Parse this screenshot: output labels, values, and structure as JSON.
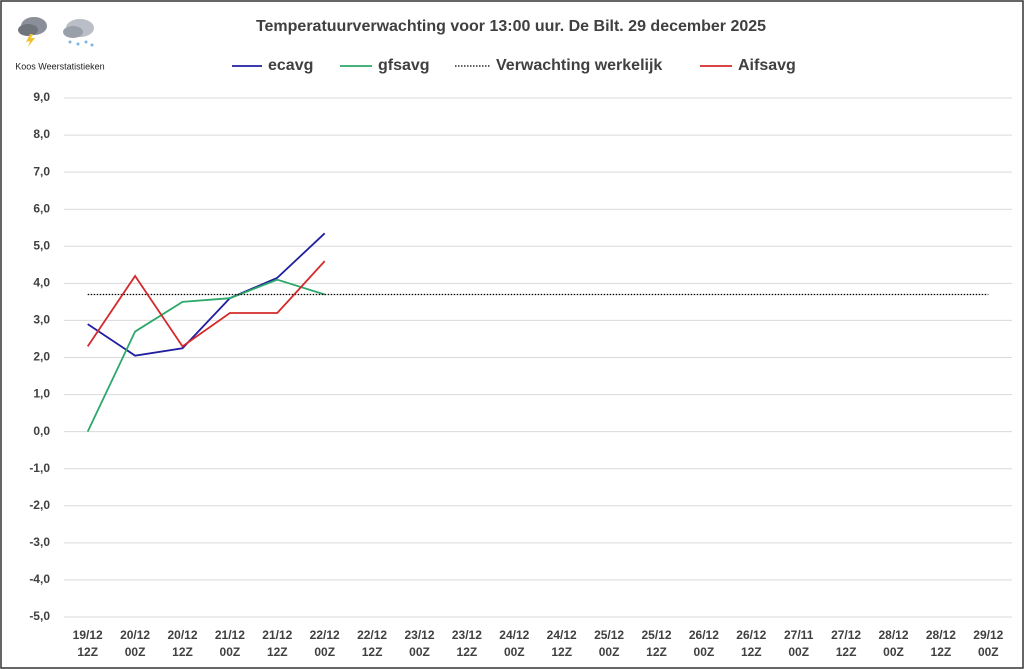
{
  "chart_data": {
    "type": "line",
    "title": "Temperatuurverwachting voor 13:00 uur. De Bilt. 29 december 2025",
    "annotations": [
      "Koos Weerstatistieken"
    ],
    "categories": [
      [
        "19/12",
        "12Z"
      ],
      [
        "20/12",
        "00Z"
      ],
      [
        "20/12",
        "12Z"
      ],
      [
        "21/12",
        "00Z"
      ],
      [
        "21/12",
        "12Z"
      ],
      [
        "22/12",
        "00Z"
      ],
      [
        "22/12",
        "12Z"
      ],
      [
        "23/12",
        "00Z"
      ],
      [
        "23/12",
        "12Z"
      ],
      [
        "24/12",
        "00Z"
      ],
      [
        "24/12",
        "12Z"
      ],
      [
        "25/12",
        "00Z"
      ],
      [
        "25/12",
        "12Z"
      ],
      [
        "26/12",
        "00Z"
      ],
      [
        "26/12",
        "12Z"
      ],
      [
        "27/11",
        "00Z"
      ],
      [
        "27/12",
        "12Z"
      ],
      [
        "28/12",
        "00Z"
      ],
      [
        "28/12",
        "12Z"
      ],
      [
        "29/12",
        "00Z"
      ]
    ],
    "series": [
      {
        "name": "ecavg",
        "color": "#1f1f9f",
        "dash": "solid",
        "values": [
          2.9,
          2.05,
          2.25,
          3.6,
          4.15,
          5.35,
          null,
          null,
          null,
          null,
          null,
          null,
          null,
          null,
          null,
          null,
          null,
          null,
          null,
          null
        ]
      },
      {
        "name": "gfsavg",
        "color": "#2ca86a",
        "dash": "solid",
        "values": [
          0.0,
          2.7,
          3.5,
          3.6,
          4.1,
          3.7,
          null,
          null,
          null,
          null,
          null,
          null,
          null,
          null,
          null,
          null,
          null,
          null,
          null,
          null
        ]
      },
      {
        "name": "Verwachting werkelijk",
        "color": "#000000",
        "dash": "dotted",
        "values": [
          3.7,
          3.7,
          3.7,
          3.7,
          3.7,
          3.7,
          3.7,
          3.7,
          3.7,
          3.7,
          3.7,
          3.7,
          3.7,
          3.7,
          3.7,
          3.7,
          3.7,
          3.7,
          3.7,
          3.7
        ]
      },
      {
        "name": "Aifsavg",
        "color": "#d42a2a",
        "dash": "solid",
        "values": [
          2.3,
          4.2,
          2.3,
          3.2,
          3.2,
          4.6,
          null,
          null,
          null,
          null,
          null,
          null,
          null,
          null,
          null,
          null,
          null,
          null,
          null,
          null
        ]
      }
    ],
    "ylim": [
      -5,
      9
    ],
    "yticks": [
      {
        "value": -5,
        "label": "-5,0"
      },
      {
        "value": -4,
        "label": "-4,0"
      },
      {
        "value": -3,
        "label": "-3,0"
      },
      {
        "value": -2,
        "label": "-2,0"
      },
      {
        "value": -1,
        "label": "-1,0"
      },
      {
        "value": 0,
        "label": "0,0"
      },
      {
        "value": 1,
        "label": "1,0"
      },
      {
        "value": 2,
        "label": "2,0"
      },
      {
        "value": 3,
        "label": "3,0"
      },
      {
        "value": 4,
        "label": "4,0"
      },
      {
        "value": 5,
        "label": "5,0"
      },
      {
        "value": 6,
        "label": "6,0"
      },
      {
        "value": 7,
        "label": "7,0"
      },
      {
        "value": 8,
        "label": "8,0"
      },
      {
        "value": 9,
        "label": "9,0"
      }
    ],
    "grid": true,
    "legend": "top"
  }
}
